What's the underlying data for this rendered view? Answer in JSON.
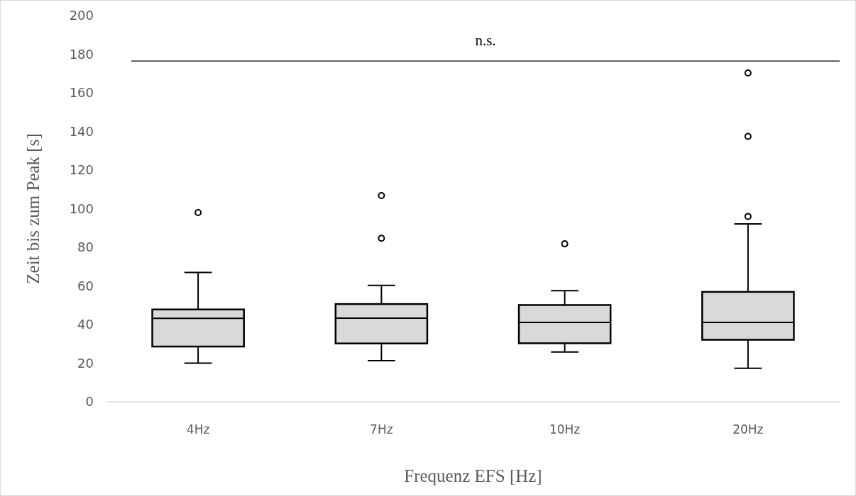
{
  "chart_data": {
    "type": "box",
    "categories": [
      "4Hz",
      "7Hz",
      "10Hz",
      "20Hz"
    ],
    "xlabel": "Frequenz EFS [Hz]",
    "ylabel": "Zeit bis zum Peak [s]",
    "ylim": [
      0,
      200
    ],
    "yticks": [
      0,
      20,
      40,
      60,
      80,
      100,
      120,
      140,
      160,
      180,
      200
    ],
    "grid": false,
    "color": "#d9d9d9",
    "boxes": [
      {
        "low": 20,
        "q1": 28.6,
        "median": 43.2,
        "q3": 47.8,
        "high": 67,
        "outliers": [
          98
        ]
      },
      {
        "low": 21.3,
        "q1": 30.2,
        "median": 43.3,
        "q3": 50.6,
        "high": 60.3,
        "outliers": [
          106.8,
          84.7
        ]
      },
      {
        "low": 25.8,
        "q1": 30.3,
        "median": 41.1,
        "q3": 50.1,
        "high": 57.5,
        "outliers": [
          81.8
        ]
      },
      {
        "low": 17.3,
        "q1": 32.1,
        "median": 41.1,
        "q3": 56.9,
        "high": 92.1,
        "outliers": [
          170.3,
          137.4,
          96
        ]
      }
    ],
    "ref_lines": [
      {
        "axis": "y",
        "value": 176.5,
        "label": "n.s.",
        "color": "#000000"
      }
    ]
  }
}
